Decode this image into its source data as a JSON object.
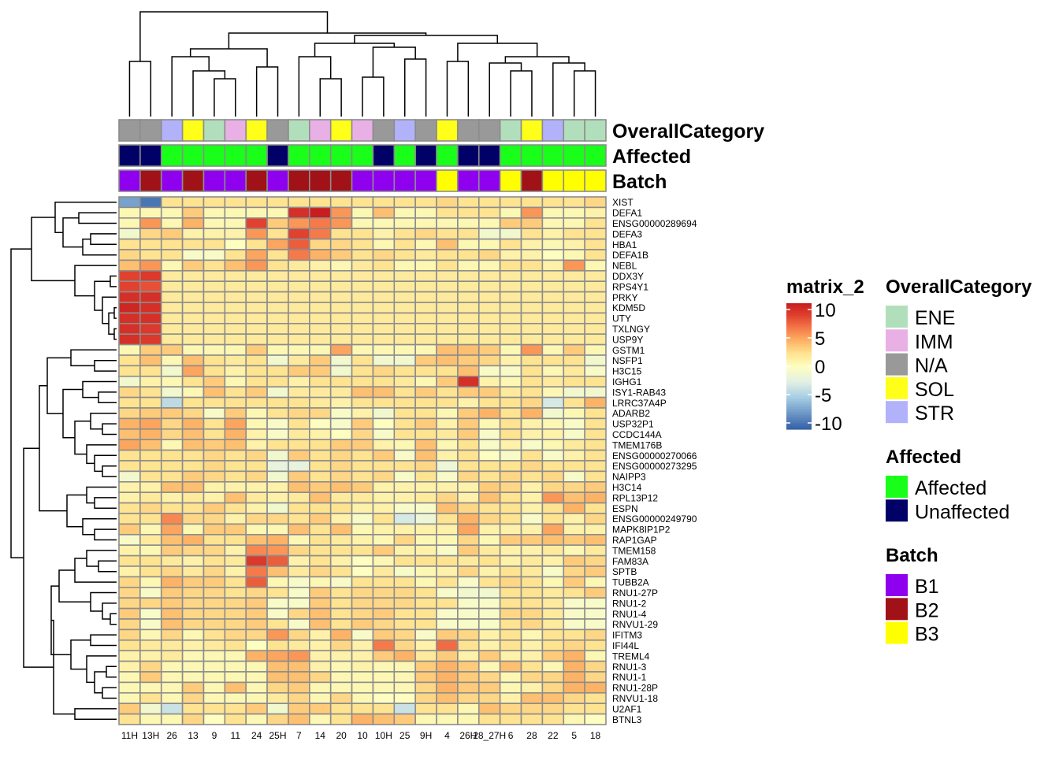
{
  "chart_data": {
    "type": "heatmap",
    "legend_title": "matrix_2",
    "color_range": [
      -10,
      10
    ],
    "color_ticks": [
      "10",
      "5",
      "0",
      "-5",
      "-10"
    ],
    "legend_placement": "right",
    "columns": [
      "11H",
      "13H",
      "26",
      "13",
      "9",
      "11",
      "24",
      "25H",
      "7",
      "14",
      "20",
      "10",
      "10H",
      "25",
      "9H",
      "4",
      "26H",
      "28_27H",
      "6",
      "28",
      "22",
      "5",
      "18"
    ],
    "rows": [
      "XIST",
      "DEFA1",
      "ENSG00000289694",
      "DEFA3",
      "HBA1",
      "DEFA1B",
      "NEBL",
      "DDX3Y",
      "RPS4Y1",
      "PRKY",
      "KDM5D",
      "UTY",
      "TXLNGY",
      "USP9Y",
      "GSTM1",
      "NSFP1",
      "H3C15",
      "IGHG1",
      "ISY1-RAB43",
      "LRRC37A4P",
      "ADARB2",
      "USP32P1",
      "CCDC144A",
      "TMEM176B",
      "ENSG00000270066",
      "ENSG00000273295",
      "NAIPP3",
      "H3C14",
      "RPL13P12",
      "ESPN",
      "ENSG00000249790",
      "MAPK8IP1P2",
      "RAP1GAP",
      "TMEM158",
      "FAM83A",
      "SPTB",
      "TUBB2A",
      "RNU1-27P",
      "RNU1-2",
      "RNU1-4",
      "RNVU1-29",
      "IFITM3",
      "IFI44L",
      "TREML4",
      "RNU1-3",
      "RNU1-1",
      "RNU1-28P",
      "RNVU1-18",
      "U2AF1",
      "BTNL3"
    ],
    "values": [
      [
        -7,
        -9,
        2,
        2,
        2,
        2,
        2,
        2,
        2,
        2,
        2,
        2,
        2,
        2,
        2,
        2.5,
        2,
        2,
        2,
        2,
        2,
        2,
        2.5
      ],
      [
        0.5,
        0.5,
        0.5,
        3,
        0.5,
        0.5,
        0.5,
        0.5,
        9,
        10,
        5,
        0.5,
        3.5,
        0.5,
        0.5,
        2,
        2,
        2,
        0.5,
        5,
        0.5,
        0.5,
        1
      ],
      [
        0.5,
        5,
        0.5,
        4,
        0.5,
        0.5,
        8,
        3,
        5,
        6,
        5,
        0.5,
        0.5,
        0.5,
        0.5,
        0.5,
        0.5,
        0.5,
        3,
        3,
        0.5,
        0.5,
        2
      ],
      [
        -1,
        2.5,
        3,
        1,
        1,
        1,
        5,
        2,
        8,
        6,
        2,
        2,
        1,
        2,
        2.5,
        2,
        2,
        -1,
        -1,
        2,
        1,
        2,
        2
      ],
      [
        2,
        2,
        2,
        2,
        2,
        0,
        2,
        4.5,
        7,
        2.5,
        2.5,
        2,
        0.5,
        2,
        0.5,
        3.5,
        0.5,
        0.5,
        2,
        1,
        0.5,
        1,
        2
      ],
      [
        2.5,
        2,
        2,
        -0.5,
        -0.5,
        2,
        4.5,
        2,
        6,
        4,
        3,
        2,
        2.5,
        2,
        1.5,
        2,
        2,
        2.5,
        1,
        1,
        0,
        0.5,
        2
      ],
      [
        3.5,
        5,
        0.5,
        3,
        2,
        3.5,
        5,
        2,
        1.5,
        1,
        0.5,
        1.5,
        2,
        0.5,
        0.5,
        2,
        0.5,
        0.5,
        2,
        2,
        1,
        5,
        0.5
      ],
      [
        8,
        8.5,
        1.5,
        1.5,
        1.5,
        1.5,
        1.5,
        1.5,
        1.5,
        1.5,
        1.5,
        1.5,
        1.5,
        1.5,
        1.5,
        1.5,
        1.5,
        1.5,
        1.5,
        1.5,
        1.5,
        1.5,
        1.5
      ],
      [
        8,
        7.5,
        1.5,
        1.5,
        1.5,
        1.5,
        1.5,
        1.5,
        1.5,
        1.5,
        1.5,
        1.5,
        1.5,
        1.5,
        1.5,
        1.5,
        1.5,
        1.5,
        1.5,
        1.5,
        1.5,
        1.5,
        1.5
      ],
      [
        9,
        9,
        1.5,
        1.5,
        1.5,
        1.5,
        1.5,
        1.5,
        1.5,
        1.5,
        1.5,
        1.5,
        1.5,
        1.5,
        1.5,
        1.5,
        1.5,
        1.5,
        1.5,
        1.5,
        1.5,
        1.5,
        1.5
      ],
      [
        9.5,
        9,
        1.5,
        1.5,
        1.5,
        1.5,
        1.5,
        1.5,
        1.5,
        1.5,
        1.5,
        1.5,
        1.5,
        1.5,
        1.5,
        1.5,
        1.5,
        1.5,
        1.5,
        1.5,
        1.5,
        1.5,
        1.5
      ],
      [
        9,
        9,
        1.5,
        1.5,
        1.5,
        1.5,
        1.5,
        1.5,
        1.5,
        1.5,
        1.5,
        1.5,
        1.5,
        1.5,
        1.5,
        1.5,
        1.5,
        1.5,
        1.5,
        1.5,
        1.5,
        1.5,
        1.5
      ],
      [
        9,
        8.5,
        1.5,
        1.5,
        1.5,
        1.5,
        1.5,
        1.5,
        1.5,
        1.5,
        1.5,
        1.5,
        1.5,
        1.5,
        1.5,
        1.5,
        1.5,
        1.5,
        1.5,
        1.5,
        1.5,
        1.5,
        1.5
      ],
      [
        9,
        8.5,
        1.5,
        1.5,
        1.5,
        1.5,
        1.5,
        1.5,
        1.5,
        1.5,
        1.5,
        1.5,
        1.5,
        1.5,
        1.5,
        1.5,
        1.5,
        1.5,
        1.5,
        1.5,
        1.5,
        1.5,
        1.5
      ],
      [
        0.5,
        3,
        3,
        0.5,
        0.5,
        0.5,
        3,
        0.5,
        0.5,
        0.5,
        4.5,
        0.5,
        0.5,
        0.5,
        0.5,
        3.5,
        3.5,
        3,
        0.5,
        5,
        0.5,
        3,
        0.5
      ],
      [
        2,
        3.5,
        0.5,
        3.5,
        2,
        1.5,
        2,
        -1,
        1.5,
        3,
        -1,
        2,
        -1,
        -1,
        3,
        3.5,
        3,
        2.5,
        1,
        2,
        2,
        2,
        -1
      ],
      [
        2,
        2,
        -1,
        4.5,
        2,
        1,
        2,
        2,
        3,
        3,
        -1,
        2,
        2.5,
        2,
        2,
        2,
        3.5,
        -0.5,
        -0.5,
        2,
        0.5,
        1.5,
        -0.5
      ],
      [
        -1,
        1,
        0.5,
        2,
        3,
        0.5,
        2,
        2,
        1,
        2,
        2,
        2,
        2,
        1.5,
        0.5,
        3,
        9,
        1,
        0.5,
        2,
        1.5,
        2,
        2
      ],
      [
        2.5,
        2,
        -1,
        0.5,
        3.5,
        2,
        3,
        -1,
        1.5,
        1.5,
        1.5,
        3.5,
        3.5,
        2,
        3,
        2,
        3,
        3,
        1.5,
        2,
        0.5,
        -1,
        -1
      ],
      [
        2,
        2,
        -4,
        2,
        2,
        2,
        2,
        2,
        2,
        1.5,
        1,
        2,
        2,
        2,
        2,
        2,
        1,
        2,
        2,
        2.5,
        -3,
        2,
        4
      ],
      [
        2.5,
        3,
        3,
        2.5,
        -0.5,
        3,
        0.5,
        2,
        2.5,
        2.5,
        -0.5,
        1,
        -1,
        2,
        2,
        0.5,
        3,
        4,
        2,
        4,
        -1,
        0.5,
        2
      ],
      [
        4,
        4.5,
        2.5,
        4,
        2,
        4.5,
        0.5,
        -0.5,
        2,
        0,
        -0.5,
        3,
        0,
        2,
        3,
        1,
        3,
        0.5,
        2,
        1,
        0.5,
        -0.5,
        2
      ],
      [
        3.5,
        4,
        2.5,
        3.5,
        2,
        4,
        1,
        -0.5,
        1.5,
        1,
        0,
        2.5,
        -0.5,
        2,
        2,
        1.5,
        3,
        -0.5,
        2,
        1,
        1,
        -0.5,
        2
      ],
      [
        4.5,
        3.5,
        0.5,
        3.5,
        3,
        3.5,
        1,
        2,
        2,
        2,
        3,
        3,
        1,
        0.5,
        3.5,
        0.5,
        2,
        -0.5,
        1,
        -0.5,
        0.5,
        1.5,
        2
      ],
      [
        2,
        2,
        2,
        2,
        2.5,
        2,
        2.5,
        -1,
        3,
        2,
        2.5,
        2,
        3,
        -0.5,
        3.5,
        1,
        2,
        0,
        -0.5,
        2,
        -0.5,
        1,
        2
      ],
      [
        2,
        2,
        2,
        2,
        2.5,
        2,
        2,
        -2,
        -2,
        2,
        2.5,
        2,
        2,
        2,
        2.5,
        -1.5,
        2,
        2,
        2,
        2.5,
        2,
        2,
        2
      ],
      [
        -1,
        2,
        2,
        3,
        2.5,
        2,
        2.5,
        -1,
        3,
        2,
        2.5,
        2,
        2.5,
        -0.5,
        2,
        -0.5,
        2.5,
        2,
        2.5,
        2,
        2.5,
        -0.5,
        2
      ],
      [
        1,
        1,
        3.5,
        3.5,
        1,
        1,
        1,
        1,
        3.5,
        3,
        3.5,
        3,
        1,
        1,
        1,
        1,
        1,
        3,
        2.5,
        1,
        2.5,
        2.5,
        3
      ],
      [
        1,
        1.5,
        1,
        1.5,
        1,
        3.5,
        1.5,
        1,
        1.5,
        3.5,
        1.5,
        1.5,
        1,
        1,
        1.5,
        2.5,
        1,
        3.5,
        2,
        1,
        5,
        3.5,
        4
      ],
      [
        2,
        2.5,
        2,
        2,
        3,
        2,
        1,
        -1,
        2,
        2,
        2,
        1,
        1,
        -0.5,
        -0.5,
        3.5,
        2.5,
        2,
        2,
        1,
        2,
        4,
        2
      ],
      [
        2,
        2,
        5.5,
        2.5,
        2.5,
        1,
        2.5,
        2.5,
        2,
        3,
        1,
        -0.5,
        2,
        -3,
        -1.5,
        2,
        4,
        2.5,
        2,
        -0.5,
        2,
        1,
        2.5
      ],
      [
        3,
        0.5,
        4.5,
        0.5,
        3,
        3,
        0.5,
        0.5,
        3.5,
        2,
        3.5,
        0.5,
        1,
        1,
        1,
        1,
        4.5,
        1,
        1,
        1,
        4.5,
        1,
        1
      ],
      [
        -0.5,
        1.5,
        3.5,
        4,
        2,
        2,
        3.5,
        4,
        0.5,
        2,
        1.5,
        1,
        0.5,
        2.5,
        0.5,
        0.5,
        2.5,
        0.5,
        3,
        3,
        3.5,
        3,
        3.5
      ],
      [
        1,
        0.5,
        3,
        2.5,
        2.5,
        1,
        5.5,
        5,
        2.5,
        2,
        2,
        2,
        3,
        1,
        1,
        -0.5,
        3,
        1.5,
        1,
        1,
        1.5,
        0.5,
        1.5
      ],
      [
        2,
        2,
        1.5,
        1,
        2,
        1.5,
        8.5,
        7,
        1,
        2,
        1,
        0,
        0.5,
        2,
        2,
        2,
        1.5,
        2,
        1,
        1.5,
        1,
        3,
        2.5
      ],
      [
        1,
        2,
        2.5,
        1.5,
        2.5,
        1,
        6,
        3.5,
        1.5,
        2.5,
        2,
        0,
        1.5,
        -0.5,
        0.5,
        1,
        2.5,
        1,
        2,
        1.5,
        -0.5,
        2.5,
        3
      ],
      [
        2.5,
        0.5,
        4,
        3,
        3,
        2,
        7,
        0.5,
        -0.5,
        0.5,
        -0.5,
        2,
        2,
        2,
        0.5,
        2,
        -0.5,
        2,
        2.5,
        2,
        0.5,
        3,
        0.5
      ],
      [
        2.5,
        -0.5,
        3,
        2.5,
        2.5,
        2,
        2.5,
        2,
        -0.5,
        3,
        2,
        2.5,
        2.5,
        2.5,
        2,
        -0.5,
        -1,
        -1,
        2,
        2,
        1.5,
        2,
        3
      ],
      [
        2.5,
        2.5,
        3,
        2.5,
        2.5,
        2.5,
        3,
        -0.5,
        -0.5,
        3,
        2,
        2.5,
        2.5,
        2.5,
        2,
        2,
        -0.5,
        -0.5,
        2,
        2,
        1.5,
        -0.5,
        -0.5
      ],
      [
        3,
        -0.5,
        3.5,
        2.5,
        2.5,
        2.5,
        3,
        -0.5,
        2.5,
        3.5,
        2,
        2.5,
        3,
        2,
        2,
        -0.5,
        -0.5,
        -0.5,
        2.5,
        2.5,
        1.5,
        -0.5,
        -0.5
      ],
      [
        2.5,
        -0.5,
        3.5,
        2.5,
        2.5,
        2.5,
        3,
        2,
        -0.5,
        3.5,
        2,
        3,
        2.5,
        2,
        2,
        -0.5,
        -0.5,
        -0.5,
        2,
        2.5,
        1.5,
        -0.5,
        -0.5
      ],
      [
        2.5,
        0.5,
        2.5,
        0.5,
        2,
        2.5,
        2.5,
        5,
        2.5,
        1,
        4,
        -0.5,
        3,
        2.5,
        -0.5,
        3,
        2.5,
        1,
        2,
        0.5,
        2,
        2,
        2.5
      ],
      [
        2,
        1.5,
        1.5,
        1,
        1.5,
        2,
        0,
        2,
        1.5,
        1,
        2.5,
        1,
        6,
        2.5,
        1,
        6.5,
        2,
        1,
        2,
        1,
        2,
        2.5,
        2
      ],
      [
        1,
        1,
        1.5,
        0.5,
        0.5,
        0.5,
        4,
        4.5,
        5,
        1,
        1,
        1,
        3,
        4,
        1.5,
        3,
        1,
        3,
        1,
        1,
        3,
        4,
        0.5
      ],
      [
        1,
        2.5,
        0.5,
        0.5,
        0.5,
        0.5,
        0.5,
        3.5,
        3.5,
        1,
        0.5,
        1,
        0.5,
        0.5,
        3,
        4,
        3,
        0.5,
        3.5,
        2,
        0.5,
        4,
        2.5
      ],
      [
        0.5,
        3,
        0.5,
        0.5,
        0.5,
        0.5,
        0.5,
        3.5,
        3.5,
        2.5,
        0.5,
        0.5,
        0.5,
        0.5,
        3,
        4,
        3,
        2.5,
        0.5,
        2.5,
        2.5,
        4,
        2.5
      ],
      [
        0.5,
        0.5,
        0.5,
        3,
        0.5,
        3.5,
        0.5,
        2.5,
        3,
        0.5,
        0.5,
        0.5,
        0.5,
        0.5,
        2.5,
        4,
        3,
        3,
        0.5,
        1,
        2.5,
        4,
        4
      ],
      [
        0.5,
        2,
        0.5,
        2.5,
        0.5,
        0.5,
        0.5,
        1.5,
        2.5,
        0.5,
        2.5,
        0.5,
        0,
        0,
        2.5,
        3.5,
        2.5,
        2.5,
        1,
        3.5,
        3.5,
        2.5,
        2
      ],
      [
        3,
        -1,
        -3.5,
        2,
        2,
        2,
        3,
        -1,
        3,
        3,
        2,
        2,
        2,
        -3.5,
        2,
        2,
        0.5,
        3.5,
        2.5,
        2.5,
        2.5,
        2,
        2
      ],
      [
        2,
        0.5,
        0.5,
        2.5,
        0,
        2,
        0.5,
        2.5,
        3.5,
        0.5,
        2,
        4,
        3.5,
        3,
        0.5,
        0.5,
        0.5,
        2,
        2,
        2,
        2,
        0.5,
        0
      ]
    ],
    "annotations": [
      {
        "name": "OverallCategory",
        "values": [
          "N/A",
          "N/A",
          "STR",
          "SOL",
          "ENE",
          "IMM",
          "SOL",
          "N/A",
          "ENE",
          "IMM",
          "SOL",
          "IMM",
          "N/A",
          "STR",
          "N/A",
          "SOL",
          "N/A",
          "N/A",
          "ENE",
          "SOL",
          "STR",
          "ENE",
          "ENE"
        ],
        "levels": [
          {
            "label": "ENE",
            "color": "#b2dfbb"
          },
          {
            "label": "IMM",
            "color": "#e9b0e6"
          },
          {
            "label": "N/A",
            "color": "#999999"
          },
          {
            "label": "SOL",
            "color": "#ffff1a"
          },
          {
            "label": "STR",
            "color": "#b2b2fb"
          }
        ]
      },
      {
        "name": "Affected",
        "values": [
          "Unaffected",
          "Unaffected",
          "Affected",
          "Affected",
          "Affected",
          "Affected",
          "Affected",
          "Unaffected",
          "Affected",
          "Affected",
          "Affected",
          "Affected",
          "Unaffected",
          "Affected",
          "Unaffected",
          "Affected",
          "Unaffected",
          "Unaffected",
          "Affected",
          "Affected",
          "Affected",
          "Affected",
          "Affected"
        ],
        "levels": [
          {
            "label": "Affected",
            "color": "#1aff1a"
          },
          {
            "label": "Unaffected",
            "color": "#000066"
          }
        ]
      },
      {
        "name": "Batch",
        "values": [
          "B1",
          "B2",
          "B1",
          "B2",
          "B1",
          "B1",
          "B2",
          "B1",
          "B2",
          "B2",
          "B2",
          "B1",
          "B1",
          "B1",
          "B1",
          "B3",
          "B1",
          "B1",
          "B3",
          "B2",
          "B3",
          "B3",
          "B3"
        ],
        "levels": [
          {
            "label": "B1",
            "color": "#8f00ef"
          },
          {
            "label": "B2",
            "color": "#a01218"
          },
          {
            "label": "B3",
            "color": "#ffff00"
          }
        ]
      }
    ],
    "row_dendrogram": true,
    "column_dendrogram": true
  }
}
